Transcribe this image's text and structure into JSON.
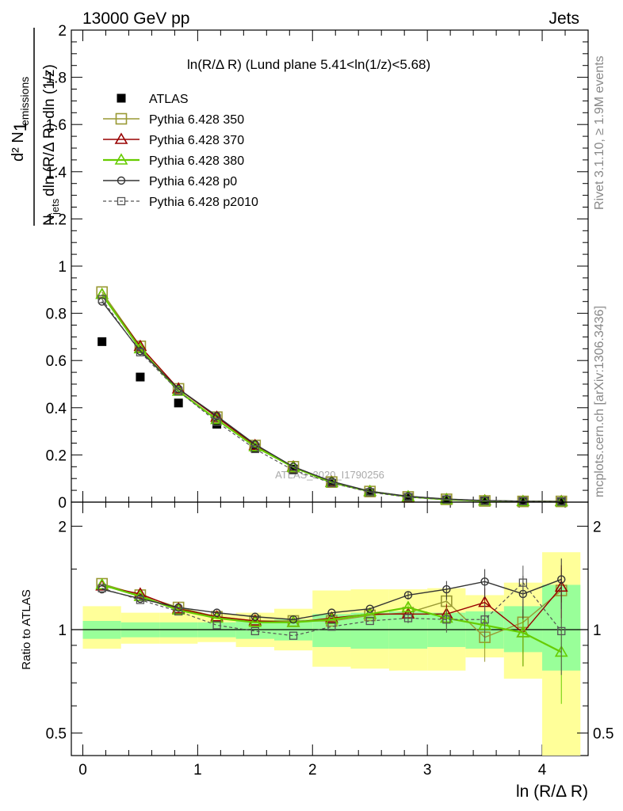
{
  "header": {
    "left": "13000 GeV pp",
    "right": "Jets"
  },
  "side_text": {
    "rivet": "Rivet 3.1.10, ≥ 1.9M events",
    "mcplots": "mcplots.cern.ch [arXiv:1306.3436]"
  },
  "watermark": "ATLAS_2020_I1790256",
  "legend_title": "ln(R/Δ R) (Lund plane 5.41<ln(1/z)<5.68)",
  "colors": {
    "atlas": "#000000",
    "p350": "#999933",
    "p370": "#990000",
    "p380": "#66cc00",
    "p0": "#333333",
    "p2010": "#555555",
    "band_yellow": "#ffff99",
    "band_green": "#99ff99"
  },
  "chart_data": [
    {
      "type": "scatter",
      "panel": "main",
      "xlabel": "ln (R/Δ R)",
      "ylabel": "1/N_jets d²N_emissions/dln(R/Δ R) dln(1/z)",
      "ylim": [
        0,
        2
      ],
      "xlim": [
        -0.1,
        4.4
      ],
      "yticks": [
        "0",
        "0.2",
        "0.4",
        "0.6",
        "0.8",
        "1",
        "1.2",
        "1.4",
        "1.6",
        "1.8",
        "2"
      ],
      "x": [
        0.167,
        0.5,
        0.833,
        1.167,
        1.5,
        1.833,
        2.167,
        2.5,
        2.833,
        3.167,
        3.5,
        3.833,
        4.167
      ],
      "series": [
        {
          "name": "ATLAS",
          "marker": "filled-square",
          "values": [
            0.68,
            0.53,
            0.42,
            0.33,
            0.23,
            0.14,
            0.08,
            0.04,
            0.02,
            0.01,
            0.005,
            0.003,
            0.002
          ]
        },
        {
          "name": "Pythia 6.428 350",
          "marker": "open-square",
          "line": "solid",
          "values": [
            0.89,
            0.66,
            0.48,
            0.36,
            0.24,
            0.15,
            0.085,
            0.045,
            0.022,
            0.012,
            0.005,
            0.003,
            0.003
          ]
        },
        {
          "name": "Pythia 6.428 370",
          "marker": "open-triangle",
          "line": "solid",
          "values": [
            0.88,
            0.66,
            0.48,
            0.36,
            0.24,
            0.15,
            0.085,
            0.045,
            0.022,
            0.011,
            0.006,
            0.003,
            0.003
          ]
        },
        {
          "name": "Pythia 6.428 380",
          "marker": "open-triangle",
          "line": "solid",
          "values": [
            0.88,
            0.65,
            0.47,
            0.35,
            0.235,
            0.148,
            0.083,
            0.045,
            0.023,
            0.011,
            0.005,
            0.0025,
            0.0017
          ]
        },
        {
          "name": "Pythia 6.428 p0",
          "marker": "open-circle",
          "line": "solid",
          "values": [
            0.85,
            0.64,
            0.48,
            0.365,
            0.245,
            0.15,
            0.088,
            0.046,
            0.025,
            0.013,
            0.007,
            0.0038,
            0.0028
          ]
        },
        {
          "name": "Pythia 6.428 p2010",
          "marker": "open-square-small",
          "line": "dashed",
          "values": [
            0.86,
            0.635,
            0.47,
            0.34,
            0.225,
            0.135,
            0.081,
            0.042,
            0.021,
            0.011,
            0.005,
            0.0041,
            0.002
          ]
        }
      ]
    },
    {
      "type": "scatter",
      "panel": "ratio",
      "xlabel": "ln (R/Δ R)",
      "ylabel": "Ratio to ATLAS",
      "yscale": "log",
      "ylim": [
        0.43,
        2.35
      ],
      "xlim": [
        -0.1,
        4.4
      ],
      "yticks": [
        "0.5",
        "1",
        "2"
      ],
      "xticks": [
        "0",
        "1",
        "2",
        "3",
        "4"
      ],
      "x": [
        0.167,
        0.5,
        0.833,
        1.167,
        1.5,
        1.833,
        2.167,
        2.5,
        2.833,
        3.167,
        3.5,
        3.833,
        4.167
      ],
      "bands": {
        "edges": [
          0.0,
          0.333,
          0.667,
          1.0,
          1.333,
          1.667,
          2.0,
          2.333,
          2.667,
          3.0,
          3.333,
          3.667,
          4.0,
          4.333
        ],
        "yellow_lo": [
          0.88,
          0.91,
          0.91,
          0.92,
          0.89,
          0.87,
          0.78,
          0.77,
          0.76,
          0.76,
          0.83,
          0.72,
          0.4
        ],
        "yellow_hi": [
          1.17,
          1.12,
          1.12,
          1.11,
          1.12,
          1.15,
          1.3,
          1.31,
          1.31,
          1.32,
          1.26,
          1.37,
          1.68
        ],
        "green_lo": [
          0.94,
          0.95,
          0.95,
          0.95,
          0.94,
          0.93,
          0.89,
          0.88,
          0.88,
          0.89,
          0.88,
          0.86,
          0.76
        ],
        "green_hi": [
          1.06,
          1.05,
          1.05,
          1.05,
          1.06,
          1.07,
          1.11,
          1.12,
          1.13,
          1.12,
          1.13,
          1.17,
          1.35
        ]
      },
      "series": [
        {
          "name": "Pythia 6.428 350",
          "values": [
            1.36,
            1.26,
            1.16,
            1.09,
            1.06,
            1.06,
            1.06,
            1.1,
            1.12,
            1.21,
            0.95,
            1.05,
            1.3
          ]
        },
        {
          "name": "Pythia 6.428 370",
          "values": [
            1.34,
            1.27,
            1.15,
            1.09,
            1.06,
            1.05,
            1.08,
            1.11,
            1.11,
            1.11,
            1.2,
            0.98,
            1.33
          ]
        },
        {
          "name": "Pythia 6.428 380",
          "values": [
            1.35,
            1.25,
            1.14,
            1.08,
            1.05,
            1.05,
            1.07,
            1.11,
            1.16,
            1.08,
            1.03,
            0.98,
            0.86
          ]
        },
        {
          "name": "Pythia 6.428 p0",
          "values": [
            1.31,
            1.23,
            1.16,
            1.12,
            1.09,
            1.07,
            1.12,
            1.15,
            1.26,
            1.31,
            1.38,
            1.27,
            1.4
          ]
        },
        {
          "name": "Pythia 6.428 p2010",
          "values": [
            1.32,
            1.22,
            1.13,
            1.03,
            0.99,
            0.96,
            1.02,
            1.06,
            1.08,
            1.07,
            1.07,
            1.37,
            0.99
          ]
        }
      ]
    }
  ]
}
